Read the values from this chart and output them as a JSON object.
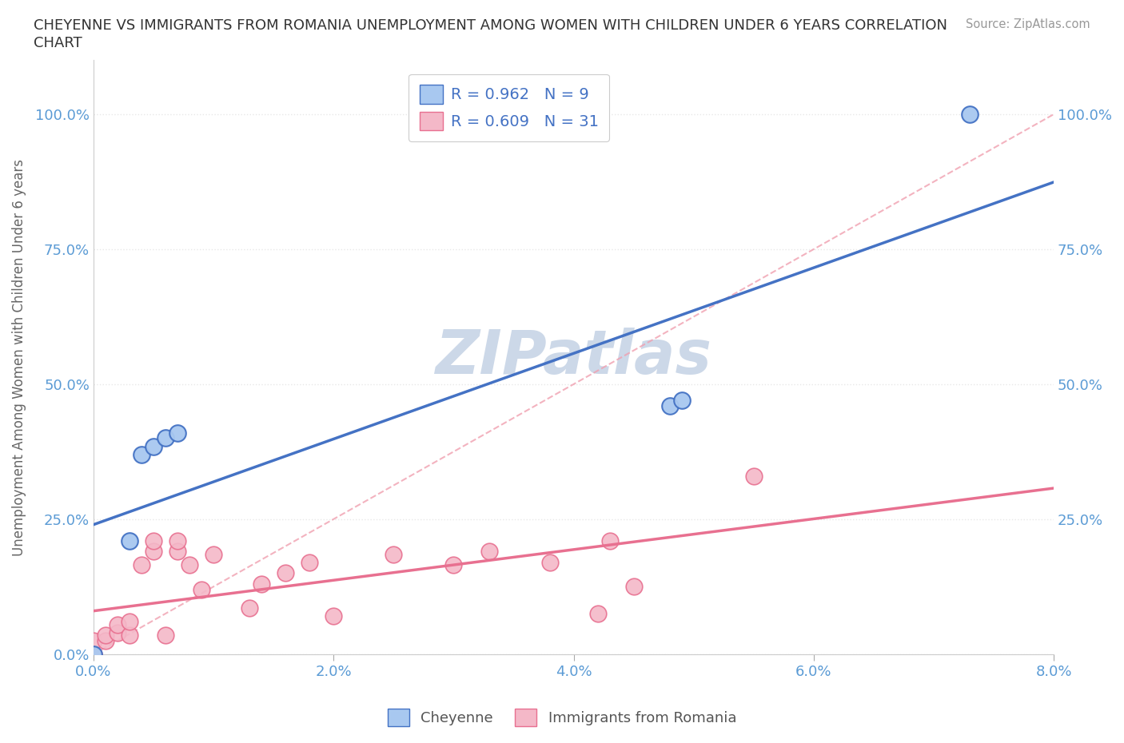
{
  "title": "CHEYENNE VS IMMIGRANTS FROM ROMANIA UNEMPLOYMENT AMONG WOMEN WITH CHILDREN UNDER 6 YEARS CORRELATION\nCHART",
  "source_text": "Source: ZipAtlas.com",
  "ylabel": "Unemployment Among Women with Children Under 6 years",
  "cheyenne_x": [
    0.0,
    0.003,
    0.004,
    0.005,
    0.006,
    0.007,
    0.048,
    0.049,
    0.073
  ],
  "cheyenne_y": [
    0.0,
    0.21,
    0.37,
    0.385,
    0.4,
    0.41,
    0.46,
    0.47,
    1.0
  ],
  "romania_x": [
    0.0,
    0.0,
    0.0,
    0.001,
    0.001,
    0.002,
    0.002,
    0.003,
    0.003,
    0.004,
    0.005,
    0.005,
    0.006,
    0.007,
    0.007,
    0.008,
    0.009,
    0.01,
    0.013,
    0.014,
    0.016,
    0.018,
    0.02,
    0.025,
    0.03,
    0.033,
    0.038,
    0.042,
    0.043,
    0.045,
    0.055
  ],
  "romania_y": [
    0.0,
    0.0,
    0.025,
    0.025,
    0.035,
    0.04,
    0.055,
    0.035,
    0.06,
    0.165,
    0.19,
    0.21,
    0.035,
    0.19,
    0.21,
    0.165,
    0.12,
    0.185,
    0.085,
    0.13,
    0.15,
    0.17,
    0.07,
    0.185,
    0.165,
    0.19,
    0.17,
    0.075,
    0.21,
    0.125,
    0.33
  ],
  "cheyenne_color": "#a8c8f0",
  "romania_color": "#f4b8c8",
  "cheyenne_line_color": "#4472c4",
  "romania_line_color": "#e87090",
  "diagonal_color": "#f0a0b0",
  "cheyenne_R": 0.962,
  "cheyenne_N": 9,
  "romania_R": 0.609,
  "romania_N": 31,
  "xlim": [
    0.0,
    0.08
  ],
  "ylim": [
    0.0,
    1.1
  ],
  "xtick_labels": [
    "0.0%",
    "2.0%",
    "4.0%",
    "6.0%",
    "8.0%"
  ],
  "xtick_values": [
    0.0,
    0.02,
    0.04,
    0.06,
    0.08
  ],
  "ytick_labels": [
    "0.0%",
    "25.0%",
    "50.0%",
    "75.0%",
    "100.0%"
  ],
  "ytick_values": [
    0.0,
    0.25,
    0.5,
    0.75,
    1.0
  ],
  "right_ytick_labels": [
    "",
    "25.0%",
    "50.0%",
    "75.0%",
    "100.0%"
  ],
  "bg_color": "#ffffff",
  "grid_color": "#e8e8e8",
  "title_color": "#333333",
  "watermark_text": "ZIPatlas",
  "watermark_color": "#ccd8e8",
  "legend_label_color": "#4472c4"
}
